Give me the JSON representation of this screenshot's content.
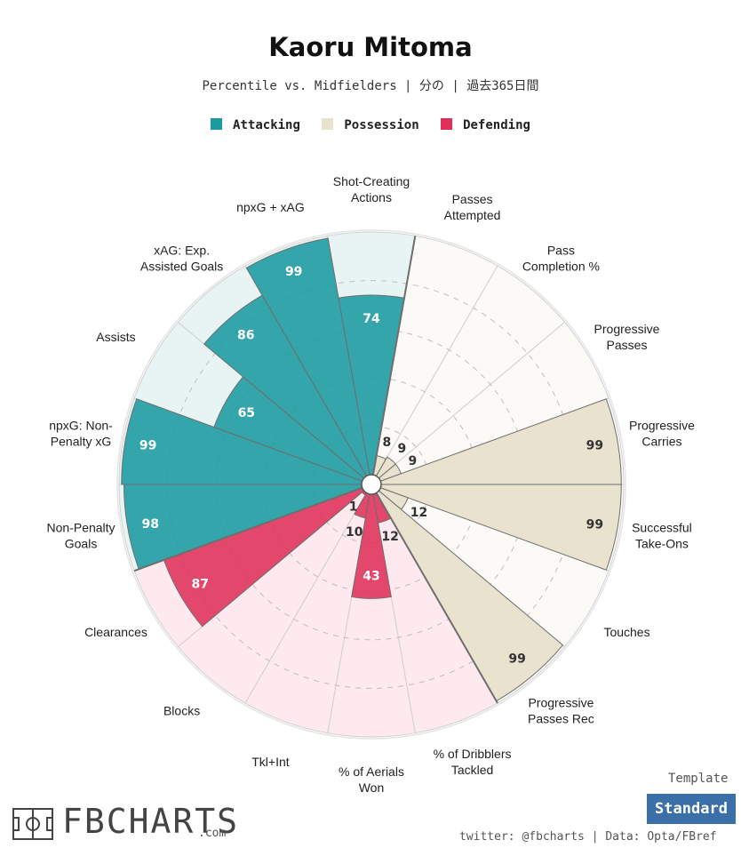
{
  "header": {
    "title": "Kaoru Mitoma",
    "subtitle": "Percentile vs. Midfielders | 分の | 過去365日間"
  },
  "legend": [
    {
      "label": "Attacking",
      "color": "#1a9ba1"
    },
    {
      "label": "Possession",
      "color": "#e8e2cf"
    },
    {
      "label": "Defending",
      "color": "#e0305a"
    }
  ],
  "colors": {
    "Attacking": {
      "fill": "#1a9ba1",
      "bg": "#e8f4f4"
    },
    "Possession": {
      "fill": "#e8e2cf",
      "bg": "#fbfaf7"
    },
    "Defending": {
      "fill": "#e0305a",
      "bg": "#fde9ee"
    }
  },
  "chart_data": {
    "type": "polar-bar",
    "title": "Kaoru Mitoma",
    "range": [
      0,
      100
    ],
    "categories": [
      {
        "label": "Shot-Creating\nActions",
        "value": 74,
        "group": "Attacking"
      },
      {
        "label": "Passes\nAttempted",
        "value": 8,
        "group": "Possession"
      },
      {
        "label": "Pass\nCompletion %",
        "value": 9,
        "group": "Possession"
      },
      {
        "label": "Progressive\nPasses",
        "value": 9,
        "group": "Possession"
      },
      {
        "label": "Progressive\nCarries",
        "value": 99,
        "group": "Possession"
      },
      {
        "label": "Successful\nTake-Ons",
        "value": 99,
        "group": "Possession"
      },
      {
        "label": "Touches",
        "value": 12,
        "group": "Possession"
      },
      {
        "label": "Progressive\nPasses Rec",
        "value": 99,
        "group": "Possession"
      },
      {
        "label": "% of Dribblers\nTackled",
        "value": 12,
        "group": "Defending"
      },
      {
        "label": "% of Aerials\nWon",
        "value": 43,
        "group": "Defending"
      },
      {
        "label": "Tkl+Int",
        "value": 10,
        "group": "Defending"
      },
      {
        "label": "Blocks",
        "value": 1,
        "group": "Defending"
      },
      {
        "label": "Clearances",
        "value": 87,
        "group": "Defending"
      },
      {
        "label": "Non-Penalty\nGoals",
        "value": 98,
        "group": "Attacking"
      },
      {
        "label": "npxG: Non-\nPenalty xG",
        "value": 99,
        "group": "Attacking"
      },
      {
        "label": "Assists",
        "value": 65,
        "group": "Attacking"
      },
      {
        "label": "xAG: Exp.\nAssisted Goals",
        "value": 86,
        "group": "Attacking"
      },
      {
        "label": "npxG + xAG",
        "value": 99,
        "group": "Attacking"
      }
    ]
  },
  "footer": {
    "template_label": "Template",
    "template_value": "Standard",
    "credit": "twitter: @fbcharts | Data: Opta/FBref",
    "logo_text": "FBCHARTS",
    "logo_suffix": ".com"
  }
}
